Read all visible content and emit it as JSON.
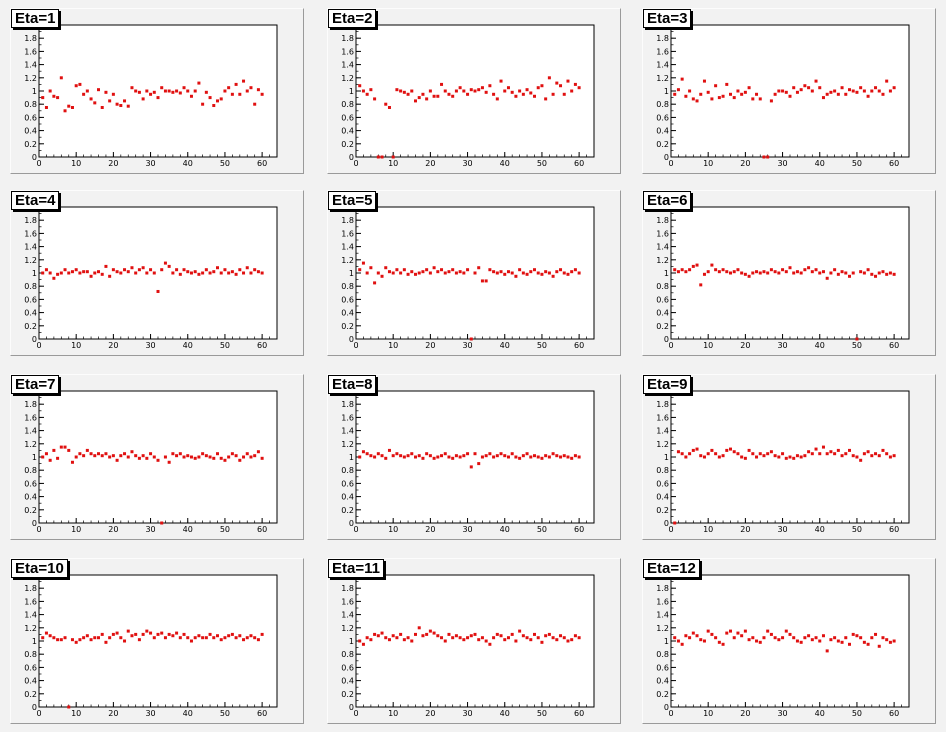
{
  "chart_data": [
    {
      "type": "scatter",
      "title": "Eta=1",
      "xlim": [
        0,
        64
      ],
      "ylim": [
        0,
        2
      ],
      "xticks": [
        0,
        10,
        20,
        30,
        40,
        50,
        60
      ],
      "yticks": [
        0,
        0.2,
        0.4,
        0.6,
        0.8,
        1,
        1.2,
        1.4,
        1.6,
        1.8
      ],
      "color": "#e01010",
      "y": [
        0.9,
        0.75,
        1.0,
        0.92,
        0.9,
        1.2,
        0.7,
        0.77,
        0.75,
        1.08,
        1.1,
        0.95,
        1.0,
        0.88,
        0.82,
        1.02,
        0.75,
        0.98,
        0.85,
        0.95,
        0.8,
        0.78,
        0.85,
        0.77,
        1.05,
        1.0,
        0.98,
        0.88,
        1.0,
        0.95,
        0.98,
        0.9,
        1.05,
        1.0,
        1.0,
        0.98,
        1.0,
        0.97,
        1.05,
        1.0,
        0.92,
        1.0,
        1.12,
        0.8,
        0.98,
        0.9,
        0.78,
        0.85,
        0.88,
        1.0,
        1.05,
        0.95,
        1.1,
        0.95,
        1.15,
        1.0,
        1.05,
        0.8,
        1.02,
        0.95
      ]
    },
    {
      "type": "scatter",
      "title": "Eta=2",
      "xlim": [
        0,
        64
      ],
      "ylim": [
        0,
        2
      ],
      "xticks": [
        0,
        10,
        20,
        30,
        40,
        50,
        60
      ],
      "yticks": [
        0,
        0.2,
        0.4,
        0.6,
        0.8,
        1,
        1.2,
        1.4,
        1.6,
        1.8
      ],
      "color": "#e01010",
      "y": [
        1.08,
        1.0,
        0.95,
        1.02,
        0.88,
        0,
        0,
        0.8,
        0.75,
        0,
        1.02,
        1.0,
        0.98,
        0.95,
        1.0,
        0.85,
        0.9,
        0.95,
        0.88,
        1.0,
        0.92,
        0.92,
        1.1,
        1.0,
        0.95,
        0.92,
        1.0,
        1.05,
        1.0,
        0.95,
        1.02,
        1.0,
        1.02,
        1.05,
        0.98,
        1.08,
        0.95,
        0.88,
        1.15,
        1.0,
        1.05,
        0.98,
        0.92,
        1.0,
        0.95,
        1.02,
        0.97,
        0.92,
        1.05,
        1.08,
        0.88,
        1.2,
        0.95,
        1.12,
        1.08,
        0.95,
        1.15,
        1.0,
        1.1,
        1.05
      ]
    },
    {
      "type": "scatter",
      "title": "Eta=3",
      "xlim": [
        0,
        64
      ],
      "ylim": [
        0,
        2
      ],
      "xticks": [
        0,
        10,
        20,
        30,
        40,
        50,
        60
      ],
      "yticks": [
        0,
        0.2,
        0.4,
        0.6,
        0.8,
        1,
        1.2,
        1.4,
        1.6,
        1.8
      ],
      "color": "#e01010",
      "y": [
        0.95,
        1.02,
        1.18,
        0.92,
        1.0,
        0.88,
        0.85,
        0.95,
        1.15,
        0.98,
        0.88,
        1.08,
        0.9,
        0.92,
        1.1,
        0.95,
        0.9,
        1.0,
        0.95,
        0.98,
        1.05,
        0.88,
        0.95,
        0.88,
        0,
        0,
        0.85,
        0.95,
        1.0,
        1.0,
        0.98,
        0.92,
        1.05,
        0.98,
        1.02,
        1.08,
        1.05,
        1.0,
        1.15,
        1.05,
        0.9,
        0.95,
        0.98,
        1.0,
        0.95,
        1.05,
        0.95,
        1.02,
        1.0,
        0.98,
        1.05,
        1.0,
        0.92,
        1.0,
        1.05,
        1.0,
        0.95,
        1.15,
        1.0,
        1.05
      ]
    },
    {
      "type": "scatter",
      "title": "Eta=4",
      "xlim": [
        0,
        64
      ],
      "ylim": [
        0,
        2
      ],
      "xticks": [
        0,
        10,
        20,
        30,
        40,
        50,
        60
      ],
      "yticks": [
        0,
        0.2,
        0.4,
        0.6,
        0.8,
        1,
        1.2,
        1.4,
        1.6,
        1.8
      ],
      "color": "#e01010",
      "y": [
        1.0,
        1.05,
        1.0,
        0.92,
        0.98,
        1.0,
        1.05,
        1.0,
        1.02,
        1.05,
        1.0,
        1.02,
        1.02,
        0.95,
        1.0,
        1.02,
        0.98,
        1.1,
        0.95,
        1.05,
        1.02,
        1.0,
        1.05,
        1.02,
        1.08,
        1.0,
        1.05,
        1.08,
        1.0,
        1.05,
        1.0,
        0.72,
        1.05,
        1.15,
        1.1,
        1.0,
        1.05,
        0.98,
        1.05,
        1.02,
        1.0,
        1.02,
        0.98,
        1.0,
        1.05,
        1.0,
        1.02,
        1.08,
        1.0,
        1.05,
        1.0,
        1.02,
        0.98,
        1.05,
        1.0,
        1.08,
        1.0,
        1.05,
        1.02,
        1.0
      ]
    },
    {
      "type": "scatter",
      "title": "Eta=5",
      "xlim": [
        0,
        64
      ],
      "ylim": [
        0,
        2
      ],
      "xticks": [
        0,
        10,
        20,
        30,
        40,
        50,
        60
      ],
      "yticks": [
        0,
        0.2,
        0.4,
        0.6,
        0.8,
        1,
        1.2,
        1.4,
        1.6,
        1.8
      ],
      "color": "#e01010",
      "y": [
        1.05,
        1.15,
        1.0,
        1.08,
        0.85,
        1.0,
        0.95,
        1.08,
        1.02,
        1.0,
        1.05,
        1.0,
        1.05,
        0.98,
        1.02,
        0.98,
        1.0,
        1.02,
        1.05,
        1.0,
        1.08,
        1.02,
        1.05,
        1.0,
        1.02,
        1.05,
        1.0,
        1.02,
        1.0,
        1.05,
        0,
        1.0,
        1.08,
        0.88,
        0.88,
        1.05,
        1.02,
        1.0,
        1.02,
        0.98,
        1.02,
        1.0,
        0.95,
        1.05,
        1.0,
        0.98,
        1.02,
        1.05,
        1.0,
        0.98,
        1.02,
        1.0,
        0.95,
        1.02,
        1.05,
        1.0,
        0.98,
        1.02,
        1.05,
        1.0
      ]
    },
    {
      "type": "scatter",
      "title": "Eta=6",
      "xlim": [
        0,
        64
      ],
      "ylim": [
        0,
        2
      ],
      "xticks": [
        0,
        10,
        20,
        30,
        40,
        50,
        60
      ],
      "yticks": [
        0,
        0.2,
        0.4,
        0.6,
        0.8,
        1,
        1.2,
        1.4,
        1.6,
        1.8
      ],
      "color": "#e01010",
      "y": [
        1.05,
        1.02,
        1.05,
        1.02,
        1.05,
        1.1,
        1.12,
        0.82,
        0.98,
        1.02,
        1.12,
        1.05,
        1.02,
        1.05,
        1.02,
        1.0,
        1.02,
        1.05,
        1.0,
        0.98,
        0.95,
        1.0,
        1.02,
        1.0,
        1.02,
        1.0,
        1.05,
        1.02,
        1.0,
        1.05,
        1.02,
        1.08,
        1.0,
        1.02,
        1.0,
        1.05,
        1.08,
        1.02,
        1.05,
        1.0,
        1.02,
        0.92,
        1.0,
        1.05,
        0.98,
        1.02,
        1.0,
        0.95,
        1.0,
        0,
        1.02,
        1.0,
        1.05,
        0.98,
        0.95,
        1.0,
        1.02,
        0.98,
        1.0,
        0.98
      ]
    },
    {
      "type": "scatter",
      "title": "Eta=7",
      "xlim": [
        0,
        64
      ],
      "ylim": [
        0,
        2
      ],
      "xticks": [
        0,
        10,
        20,
        30,
        40,
        50,
        60
      ],
      "yticks": [
        0,
        0.2,
        0.4,
        0.6,
        0.8,
        1,
        1.2,
        1.4,
        1.6,
        1.8
      ],
      "color": "#e01010",
      "y": [
        1.0,
        1.05,
        0.95,
        1.1,
        0.98,
        1.15,
        1.15,
        1.1,
        0.92,
        1.0,
        1.05,
        1.02,
        1.1,
        1.05,
        1.02,
        1.05,
        1.02,
        1.05,
        1.0,
        1.02,
        0.95,
        1.02,
        1.05,
        1.0,
        1.08,
        1.02,
        0.98,
        1.02,
        0.98,
        1.05,
        1.0,
        0.95,
        0,
        1.0,
        0.92,
        1.05,
        1.02,
        1.05,
        1.0,
        1.02,
        1.0,
        0.98,
        1.0,
        1.05,
        1.02,
        1.0,
        0.98,
        1.05,
        0.98,
        0.95,
        1.0,
        1.05,
        1.02,
        0.95,
        1.0,
        1.05,
        1.0,
        1.02,
        1.08,
        0.98
      ]
    },
    {
      "type": "scatter",
      "title": "Eta=8",
      "xlim": [
        0,
        64
      ],
      "ylim": [
        0,
        2
      ],
      "xticks": [
        0,
        10,
        20,
        30,
        40,
        50,
        60
      ],
      "yticks": [
        0,
        0.2,
        0.4,
        0.6,
        0.8,
        1,
        1.2,
        1.4,
        1.6,
        1.8
      ],
      "color": "#e01010",
      "y": [
        1.0,
        1.08,
        1.05,
        1.02,
        1.0,
        1.05,
        1.02,
        0.98,
        1.1,
        1.02,
        1.05,
        1.02,
        1.0,
        1.02,
        1.05,
        1.0,
        1.02,
        0.98,
        1.05,
        1.02,
        0.98,
        1.0,
        1.02,
        1.05,
        1.0,
        0.98,
        1.02,
        1.0,
        1.02,
        1.05,
        0.85,
        1.05,
        0.9,
        1.0,
        1.02,
        1.05,
        1.0,
        1.02,
        1.05,
        1.02,
        1.0,
        1.05,
        1.0,
        0.98,
        1.02,
        1.05,
        1.0,
        1.02,
        1.0,
        0.98,
        1.02,
        1.0,
        1.05,
        1.02,
        1.0,
        1.02,
        1.0,
        0.98,
        1.02,
        1.0
      ]
    },
    {
      "type": "scatter",
      "title": "Eta=9",
      "xlim": [
        0,
        64
      ],
      "ylim": [
        0,
        2
      ],
      "xticks": [
        0,
        10,
        20,
        30,
        40,
        50,
        60
      ],
      "yticks": [
        0,
        0.2,
        0.4,
        0.6,
        0.8,
        1,
        1.2,
        1.4,
        1.6,
        1.8
      ],
      "color": "#e01010",
      "y": [
        0,
        1.08,
        1.05,
        1.0,
        1.05,
        1.1,
        1.12,
        1.02,
        1.0,
        1.05,
        1.1,
        1.05,
        1.0,
        1.02,
        1.1,
        1.12,
        1.08,
        1.05,
        1.0,
        0.98,
        1.1,
        1.05,
        1.0,
        1.05,
        1.02,
        1.05,
        1.08,
        1.02,
        1.0,
        1.05,
        0.98,
        1.0,
        0.98,
        1.02,
        1.0,
        1.02,
        1.08,
        1.05,
        1.12,
        1.05,
        1.15,
        1.05,
        1.08,
        1.05,
        1.1,
        1.02,
        1.05,
        1.1,
        1.02,
        1.0,
        0.95,
        1.05,
        1.08,
        1.02,
        1.05,
        1.02,
        1.1,
        1.05,
        1.0,
        1.02
      ]
    },
    {
      "type": "scatter",
      "title": "Eta=10",
      "xlim": [
        0,
        64
      ],
      "ylim": [
        0,
        2
      ],
      "xticks": [
        0,
        10,
        20,
        30,
        40,
        50,
        60
      ],
      "yticks": [
        0,
        0.2,
        0.4,
        0.6,
        0.8,
        1,
        1.2,
        1.4,
        1.6,
        1.8
      ],
      "color": "#e01010",
      "y": [
        1.05,
        1.12,
        1.08,
        1.05,
        1.02,
        1.02,
        1.05,
        0,
        1.02,
        0.98,
        1.02,
        1.05,
        1.08,
        1.02,
        1.05,
        1.05,
        1.1,
        0.98,
        1.05,
        1.1,
        1.12,
        1.05,
        1.0,
        1.15,
        1.08,
        1.1,
        1.02,
        1.1,
        1.15,
        1.12,
        1.05,
        1.1,
        1.12,
        1.05,
        1.1,
        1.08,
        1.12,
        1.05,
        1.1,
        1.05,
        1.0,
        1.05,
        1.08,
        1.05,
        1.05,
        1.1,
        1.05,
        1.08,
        1.02,
        1.05,
        1.08,
        1.1,
        1.05,
        1.08,
        1.02,
        1.05,
        1.08,
        1.05,
        1.02,
        1.1
      ]
    },
    {
      "type": "scatter",
      "title": "Eta=11",
      "xlim": [
        0,
        64
      ],
      "ylim": [
        0,
        2
      ],
      "xticks": [
        0,
        10,
        20,
        30,
        40,
        50,
        60
      ],
      "yticks": [
        0,
        0.2,
        0.4,
        0.6,
        0.8,
        1,
        1.2,
        1.4,
        1.6,
        1.8
      ],
      "color": "#e01010",
      "y": [
        1.0,
        0.95,
        1.05,
        1.02,
        1.1,
        1.08,
        1.12,
        1.05,
        1.02,
        1.08,
        1.05,
        1.1,
        1.02,
        1.05,
        1.0,
        1.1,
        1.2,
        1.08,
        1.1,
        1.15,
        1.12,
        1.08,
        1.05,
        1.0,
        1.1,
        1.05,
        1.08,
        1.05,
        1.02,
        1.05,
        1.08,
        1.1,
        1.02,
        1.05,
        1.0,
        0.95,
        1.05,
        1.1,
        1.08,
        1.02,
        1.05,
        1.1,
        1.0,
        1.15,
        1.08,
        1.05,
        1.02,
        1.1,
        1.05,
        0.98,
        1.08,
        1.1,
        1.05,
        1.02,
        1.08,
        1.05,
        1.0,
        1.02,
        1.08,
        1.05
      ]
    },
    {
      "type": "scatter",
      "title": "Eta=12",
      "xlim": [
        0,
        64
      ],
      "ylim": [
        0,
        2
      ],
      "xticks": [
        0,
        10,
        20,
        30,
        40,
        50,
        60
      ],
      "yticks": [
        0,
        0.2,
        0.4,
        0.6,
        0.8,
        1,
        1.2,
        1.4,
        1.6,
        1.8
      ],
      "color": "#e01010",
      "y": [
        1.05,
        1.0,
        0.95,
        1.08,
        1.05,
        1.12,
        1.08,
        1.02,
        1.0,
        1.15,
        1.1,
        1.05,
        0.98,
        0.95,
        1.12,
        1.15,
        1.05,
        1.12,
        1.08,
        1.15,
        1.02,
        1.05,
        1.0,
        0.98,
        1.05,
        1.15,
        1.1,
        1.05,
        1.02,
        1.05,
        1.15,
        1.1,
        1.05,
        1.0,
        0.98,
        1.05,
        1.08,
        1.02,
        1.05,
        1.0,
        1.08,
        0.85,
        1.02,
        1.05,
        1.0,
        0.98,
        1.05,
        0.95,
        1.1,
        1.08,
        1.05,
        0.98,
        0.95,
        1.05,
        1.1,
        0.92,
        1.05,
        1.02,
        0.98,
        1.0
      ]
    }
  ]
}
